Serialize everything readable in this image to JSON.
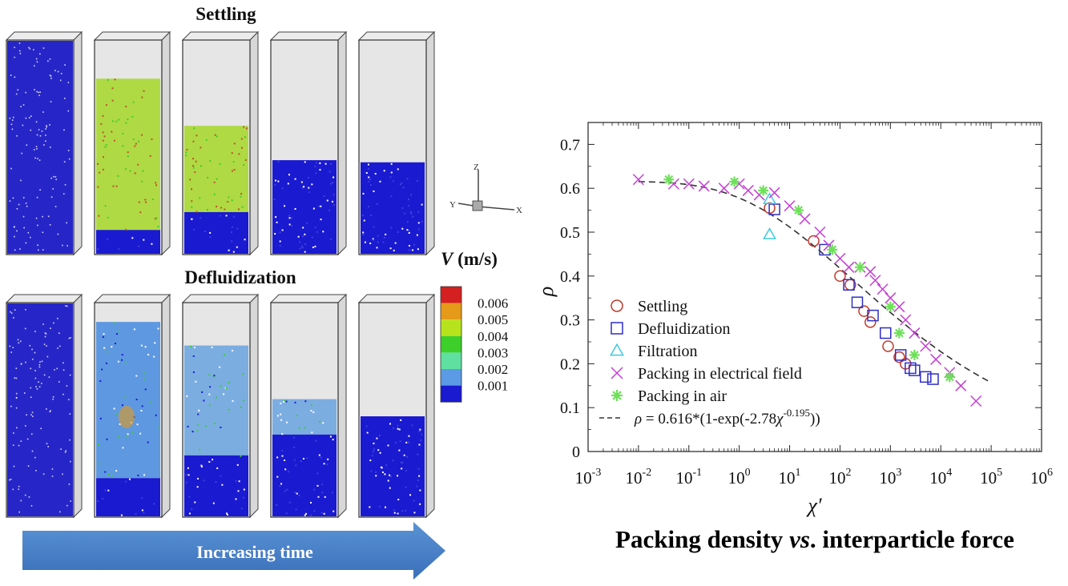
{
  "left_panel": {
    "row1_label": "Settling",
    "row2_label": "Defluidization",
    "colorbar": {
      "label_var": "V",
      "label_unit": " (m/s)",
      "ticks": [
        "0.006",
        "0.005",
        "0.004",
        "0.003",
        "0.002",
        "0.001"
      ],
      "colors": [
        "#d42020",
        "#e59a1a",
        "#b7e31c",
        "#3dcf2a",
        "#5fe0a0",
        "#5b9be6",
        "#1a1ad0"
      ]
    },
    "axes_triad": {
      "z": "Z",
      "x": "X",
      "y": "Y"
    },
    "time_arrow_label": "Increasing time",
    "settling_fill_levels": [
      1.0,
      0.82,
      0.6,
      0.44,
      0.43
    ],
    "defluidization_fill_levels": [
      1.0,
      0.91,
      0.8,
      0.55,
      0.47
    ]
  },
  "chart_data": {
    "type": "scatter",
    "title": "Packing density vs. interparticle force",
    "title_parts": [
      "Packing density ",
      "vs",
      ". interparticle force"
    ],
    "xlabel": "χ′",
    "ylabel": "ρ",
    "xscale": "log",
    "xlim": [
      0.001,
      1000000
    ],
    "ylim": [
      0,
      0.75
    ],
    "x_tick_exponents": [
      -3,
      -2,
      -1,
      0,
      1,
      2,
      3,
      4,
      5,
      6
    ],
    "y_ticks": [
      0,
      0.1,
      0.2,
      0.3,
      0.4,
      0.5,
      0.6,
      0.7
    ],
    "y_tick_labels": [
      "0",
      "0.1",
      "0.2",
      "0.3",
      "0.4",
      "0.5",
      "0.6",
      "0.7"
    ],
    "legend_position": "bottom-left",
    "series": [
      {
        "name": "Settling",
        "marker": "circle",
        "color": "#c0392b",
        "points": [
          [
            4,
            0.555
          ],
          [
            30,
            0.48
          ],
          [
            100,
            0.4
          ],
          [
            160,
            0.38
          ],
          [
            300,
            0.32
          ],
          [
            400,
            0.295
          ],
          [
            900,
            0.24
          ],
          [
            1500,
            0.215
          ],
          [
            2000,
            0.2
          ]
        ]
      },
      {
        "name": "Defluidization",
        "marker": "square",
        "color": "#2e2ec8",
        "points": [
          [
            5,
            0.552
          ],
          [
            50,
            0.46
          ],
          [
            150,
            0.38
          ],
          [
            220,
            0.34
          ],
          [
            450,
            0.31
          ],
          [
            800,
            0.27
          ],
          [
            1600,
            0.22
          ],
          [
            2500,
            0.19
          ],
          [
            3000,
            0.185
          ],
          [
            5000,
            0.17
          ],
          [
            7000,
            0.165
          ]
        ]
      },
      {
        "name": "Filtration",
        "marker": "triangle",
        "color": "#3ec9e0",
        "points": [
          [
            4,
            0.495
          ],
          [
            4,
            0.575
          ]
        ]
      },
      {
        "name": "Packing in electrical field",
        "marker": "cross",
        "color": "#c43ed4",
        "points": [
          [
            0.01,
            0.62
          ],
          [
            0.05,
            0.61
          ],
          [
            0.1,
            0.61
          ],
          [
            0.2,
            0.605
          ],
          [
            0.5,
            0.6
          ],
          [
            1,
            0.61
          ],
          [
            1.5,
            0.595
          ],
          [
            2.5,
            0.585
          ],
          [
            5,
            0.59
          ],
          [
            10,
            0.56
          ],
          [
            20,
            0.53
          ],
          [
            40,
            0.5
          ],
          [
            60,
            0.47
          ],
          [
            100,
            0.44
          ],
          [
            150,
            0.42
          ],
          [
            250,
            0.42
          ],
          [
            400,
            0.41
          ],
          [
            500,
            0.39
          ],
          [
            700,
            0.37
          ],
          [
            1000,
            0.35
          ],
          [
            1500,
            0.33
          ],
          [
            2000,
            0.3
          ],
          [
            3000,
            0.27
          ],
          [
            5000,
            0.24
          ],
          [
            8000,
            0.21
          ],
          [
            15000,
            0.18
          ],
          [
            25000,
            0.15
          ],
          [
            50000,
            0.115
          ]
        ]
      },
      {
        "name": "Packing in air",
        "marker": "asterisk",
        "color": "#6ee05a",
        "points": [
          [
            0.04,
            0.62
          ],
          [
            0.8,
            0.615
          ],
          [
            3,
            0.595
          ],
          [
            15,
            0.55
          ],
          [
            70,
            0.46
          ],
          [
            250,
            0.42
          ],
          [
            1000,
            0.33
          ],
          [
            1500,
            0.27
          ],
          [
            3000,
            0.22
          ],
          [
            15000,
            0.17
          ]
        ]
      }
    ],
    "fit": {
      "label_prefix": "ρ",
      "label_mid": " = 0.616*(1-exp(-2.78",
      "label_var": "χ",
      "label_exp": "-0.195",
      "label_suffix": "))",
      "a": 0.616,
      "b": 2.78,
      "c": -0.195,
      "x_range": [
        0.01,
        100000
      ]
    }
  }
}
